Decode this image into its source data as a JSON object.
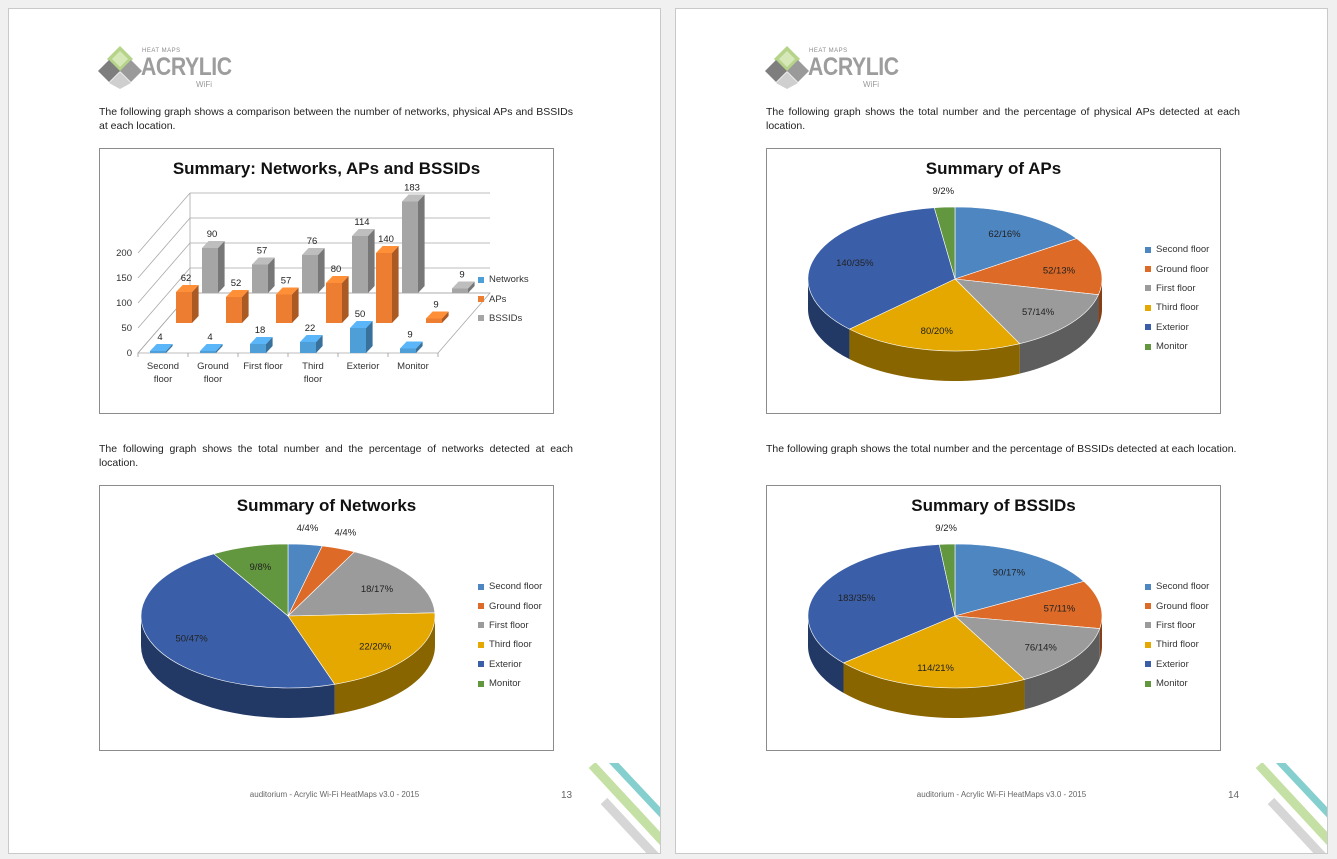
{
  "colors": {
    "networks": "#4e9ed8",
    "aps": "#ed7d31",
    "bssids": "#a5a5a5",
    "second_floor": "#4e86c2",
    "ground_floor": "#dd6a27",
    "first_floor": "#9b9b9b",
    "third_floor": "#e4a800",
    "exterior": "#3a5fa8",
    "monitor": "#62963f"
  },
  "pages": {
    "left": {
      "logo": {
        "brand": "ACRYLIC",
        "small_top": "HEAT MAPS",
        "small_bottom": "WiFi"
      },
      "intro_text": "The following graph shows a comparison between the number of networks, physical APs and BSSIDs at each location.",
      "networks_text": "The following graph shows the total number and the percentage of networks detected at each location.",
      "footer": "auditorium - Acrylic Wi-Fi HeatMaps v3.0 - 2015",
      "page_number": "13"
    },
    "right": {
      "logo": {
        "brand": "ACRYLIC",
        "small_top": "HEAT MAPS",
        "small_bottom": "WiFi"
      },
      "aps_text": "The following graph shows the total number and the percentage of physical APs detected at each location.",
      "bssids_text": "The following graph shows the total number and the percentage of BSSIDs detected at each location.",
      "footer": "auditorium - Acrylic Wi-Fi HeatMaps v3.0 - 2015",
      "page_number": "14"
    }
  },
  "chart_data": [
    {
      "id": "bar3d",
      "type": "bar",
      "title": "Summary: Networks, APs and BSSIDs",
      "categories": [
        "Second floor",
        "Ground floor",
        "First floor",
        "Third floor",
        "Exterior",
        "Monitor"
      ],
      "series": [
        {
          "name": "Networks",
          "values": [
            4,
            4,
            18,
            22,
            50,
            9
          ]
        },
        {
          "name": "APs",
          "values": [
            62,
            52,
            57,
            80,
            140,
            9
          ]
        },
        {
          "name": "BSSIDs",
          "values": [
            90,
            57,
            76,
            114,
            183,
            9
          ]
        }
      ],
      "yticks": [
        "0",
        "50",
        "100",
        "150",
        "200"
      ],
      "ylim": [
        0,
        200
      ],
      "legend": "right"
    },
    {
      "id": "pie_networks",
      "type": "pie",
      "title": "Summary of Networks",
      "labels": [
        "Second floor",
        "Ground floor",
        "First floor",
        "Third floor",
        "Exterior",
        "Monitor"
      ],
      "values": [
        4,
        4,
        18,
        22,
        50,
        9
      ],
      "data_labels": [
        "4/4%",
        "4/4%",
        "18/17%",
        "22/20%",
        "50/47%",
        "9/8%"
      ],
      "legend": "right"
    },
    {
      "id": "pie_aps",
      "type": "pie",
      "title": "Summary of APs",
      "labels": [
        "Second floor",
        "Ground floor",
        "First floor",
        "Third floor",
        "Exterior",
        "Monitor"
      ],
      "values": [
        62,
        52,
        57,
        80,
        140,
        9
      ],
      "data_labels": [
        "62/16%",
        "52/13%",
        "57/14%",
        "80/20%",
        "140/35%",
        "9/2%"
      ],
      "legend": "right"
    },
    {
      "id": "pie_bssids",
      "type": "pie",
      "title": "Summary of BSSIDs",
      "labels": [
        "Second floor",
        "Ground floor",
        "First floor",
        "Third floor",
        "Exterior",
        "Monitor"
      ],
      "values": [
        90,
        57,
        76,
        114,
        183,
        9
      ],
      "data_labels": [
        "90/17%",
        "57/11%",
        "76/14%",
        "114/21%",
        "183/35%",
        "9/2%"
      ],
      "legend": "right"
    }
  ]
}
